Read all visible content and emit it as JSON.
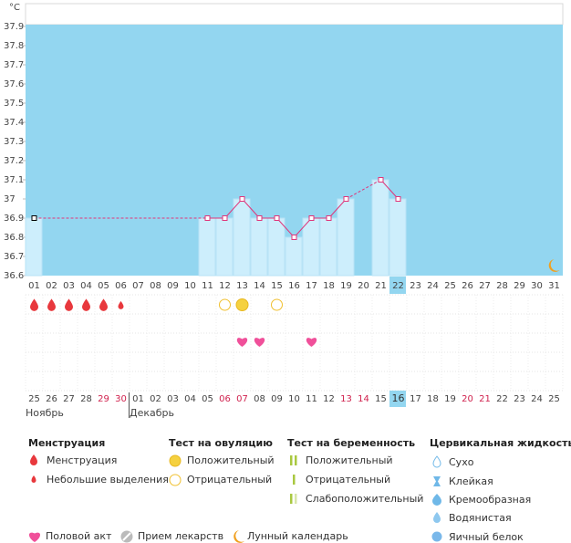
{
  "chart_data": {
    "type": "line",
    "unit": "°C",
    "categories": [
      "01",
      "02",
      "03",
      "04",
      "05",
      "06",
      "07",
      "08",
      "09",
      "10",
      "11",
      "12",
      "13",
      "14",
      "15",
      "16",
      "17",
      "18",
      "19",
      "20",
      "21",
      "22",
      "23",
      "24",
      "25",
      "26",
      "27",
      "28",
      "29",
      "30",
      "31"
    ],
    "values": [
      36.9,
      null,
      null,
      null,
      null,
      null,
      null,
      null,
      null,
      null,
      36.9,
      36.9,
      37,
      36.9,
      36.9,
      36.8,
      36.9,
      36.9,
      37,
      null,
      37.1,
      37,
      null,
      null,
      null,
      null,
      null,
      null,
      null,
      null,
      null
    ],
    "color": "#e0357a",
    "background": "#93d6f0",
    "bar_color": "#cdeefc",
    "ylim": [
      36.6,
      37.9
    ],
    "yticks": [
      36.6,
      36.7,
      36.8,
      36.9,
      37,
      37.1,
      37.2,
      37.3,
      37.4,
      37.5,
      37.6,
      37.7,
      37.8,
      37.9
    ],
    "today": "22",
    "events": {
      "menstruation": [
        "01",
        "02",
        "03",
        "04",
        "05"
      ],
      "light_discharge": [
        "06"
      ],
      "ovulation_negative": [
        "12",
        "15"
      ],
      "ovulation_positive": [
        "13"
      ],
      "intercourse": [
        "13",
        "14",
        "17"
      ],
      "moon": [
        "31"
      ]
    },
    "months": [
      {
        "name": "Ноябрь",
        "days": [
          {
            "label": "25"
          },
          {
            "label": "26"
          },
          {
            "label": "27"
          },
          {
            "label": "28"
          },
          {
            "label": "29",
            "weekend": true
          },
          {
            "label": "30",
            "weekend": true
          }
        ]
      },
      {
        "name": "Декабрь",
        "days": [
          {
            "label": "01"
          },
          {
            "label": "02"
          },
          {
            "label": "03"
          },
          {
            "label": "04"
          },
          {
            "label": "05"
          },
          {
            "label": "06",
            "weekend": true
          },
          {
            "label": "07",
            "weekend": true
          },
          {
            "label": "08"
          },
          {
            "label": "09"
          },
          {
            "label": "10"
          },
          {
            "label": "11"
          },
          {
            "label": "12"
          },
          {
            "label": "13",
            "weekend": true
          },
          {
            "label": "14",
            "weekend": true
          },
          {
            "label": "15"
          },
          {
            "label": "16",
            "today": true
          },
          {
            "label": "17"
          },
          {
            "label": "18"
          },
          {
            "label": "19"
          },
          {
            "label": "20",
            "weekend": true
          },
          {
            "label": "21",
            "weekend": true
          },
          {
            "label": "22"
          },
          {
            "label": "23"
          },
          {
            "label": "24"
          },
          {
            "label": "25"
          }
        ]
      }
    ]
  },
  "legend": [
    {
      "title": "Менструация",
      "items": [
        "Менструация",
        "Небольшие выделения"
      ]
    },
    {
      "title": "Тест на овуляцию",
      "items": [
        "Положительный",
        "Отрицательный"
      ]
    },
    {
      "title": "Тест на беременность",
      "items": [
        "Положительный",
        "Отрицательный",
        "Слабоположительный"
      ]
    },
    {
      "title": "Цервикальная жидкость",
      "items": [
        "Сухо",
        "Клейкая",
        "Кремообразная",
        "Водянистая",
        "Яичный белок"
      ]
    }
  ],
  "footer": [
    "Половой акт",
    "Прием лекарств",
    "Лунный календарь"
  ]
}
